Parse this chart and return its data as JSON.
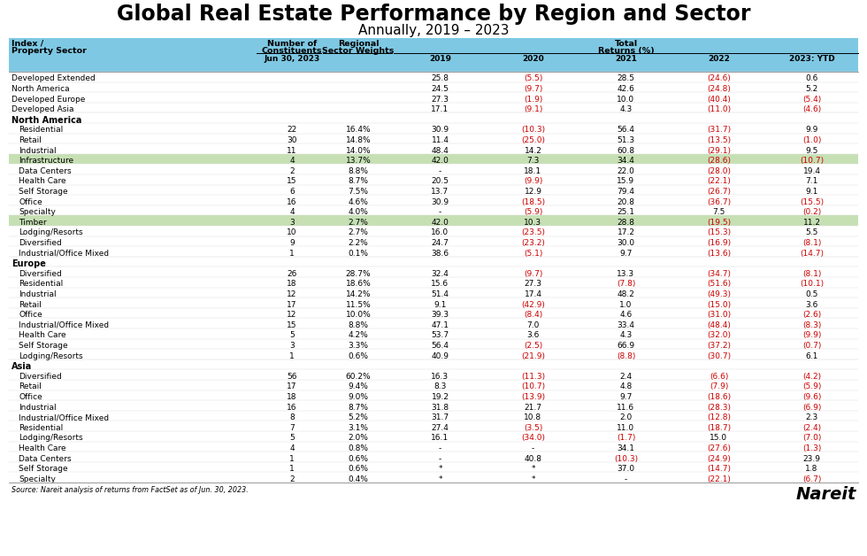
{
  "title": "Global Real Estate Performance by Region and Sector",
  "subtitle": "Annually, 2019 – 2023",
  "source": "Source: Nareit analysis of returns from FactSet as of Jun. 30, 2023.",
  "header_bg": "#7EC8E3",
  "green_highlight": "#c6e0b4",
  "rows": [
    {
      "label": "Developed Extended",
      "indent": 0,
      "num": "",
      "wt": "",
      "y2019": "25.8",
      "y2020": "(5.5)",
      "y2021": "28.5",
      "y2022": "(24.6)",
      "y2023": "0.6",
      "section": false,
      "highlight": false
    },
    {
      "label": "North America",
      "indent": 0,
      "num": "",
      "wt": "",
      "y2019": "24.5",
      "y2020": "(9.7)",
      "y2021": "42.6",
      "y2022": "(24.8)",
      "y2023": "5.2",
      "section": false,
      "highlight": false
    },
    {
      "label": "Developed Europe",
      "indent": 0,
      "num": "",
      "wt": "",
      "y2019": "27.3",
      "y2020": "(1.9)",
      "y2021": "10.0",
      "y2022": "(40.4)",
      "y2023": "(5.4)",
      "section": false,
      "highlight": false
    },
    {
      "label": "Developed Asia",
      "indent": 0,
      "num": "",
      "wt": "",
      "y2019": "17.1",
      "y2020": "(9.1)",
      "y2021": "4.3",
      "y2022": "(11.0)",
      "y2023": "(4.6)",
      "section": false,
      "highlight": false
    },
    {
      "label": "North America",
      "indent": 0,
      "num": "",
      "wt": "",
      "y2019": "",
      "y2020": "",
      "y2021": "",
      "y2022": "",
      "y2023": "",
      "section": true,
      "highlight": false
    },
    {
      "label": "Residential",
      "indent": 1,
      "num": "22",
      "wt": "16.4%",
      "y2019": "30.9",
      "y2020": "(10.3)",
      "y2021": "56.4",
      "y2022": "(31.7)",
      "y2023": "9.9",
      "section": false,
      "highlight": false
    },
    {
      "label": "Retail",
      "indent": 1,
      "num": "30",
      "wt": "14.8%",
      "y2019": "11.4",
      "y2020": "(25.0)",
      "y2021": "51.3",
      "y2022": "(13.5)",
      "y2023": "(1.0)",
      "section": false,
      "highlight": false
    },
    {
      "label": "Industrial",
      "indent": 1,
      "num": "11",
      "wt": "14.0%",
      "y2019": "48.4",
      "y2020": "14.2",
      "y2021": "60.8",
      "y2022": "(29.1)",
      "y2023": "9.5",
      "section": false,
      "highlight": false
    },
    {
      "label": "Infrastructure",
      "indent": 1,
      "num": "4",
      "wt": "13.7%",
      "y2019": "42.0",
      "y2020": "7.3",
      "y2021": "34.4",
      "y2022": "(28.6)",
      "y2023": "(10.7)",
      "section": false,
      "highlight": true
    },
    {
      "label": "Data Centers",
      "indent": 1,
      "num": "2",
      "wt": "8.8%",
      "y2019": "-",
      "y2020": "18.1",
      "y2021": "22.0",
      "y2022": "(28.0)",
      "y2023": "19.4",
      "section": false,
      "highlight": false
    },
    {
      "label": "Health Care",
      "indent": 1,
      "num": "15",
      "wt": "8.7%",
      "y2019": "20.5",
      "y2020": "(9.9)",
      "y2021": "15.9",
      "y2022": "(22.1)",
      "y2023": "7.1",
      "section": false,
      "highlight": false
    },
    {
      "label": "Self Storage",
      "indent": 1,
      "num": "6",
      "wt": "7.5%",
      "y2019": "13.7",
      "y2020": "12.9",
      "y2021": "79.4",
      "y2022": "(26.7)",
      "y2023": "9.1",
      "section": false,
      "highlight": false
    },
    {
      "label": "Office",
      "indent": 1,
      "num": "16",
      "wt": "4.6%",
      "y2019": "30.9",
      "y2020": "(18.5)",
      "y2021": "20.8",
      "y2022": "(36.7)",
      "y2023": "(15.5)",
      "section": false,
      "highlight": false
    },
    {
      "label": "Specialty",
      "indent": 1,
      "num": "4",
      "wt": "4.0%",
      "y2019": "-",
      "y2020": "(5.9)",
      "y2021": "25.1",
      "y2022": "7.5",
      "y2023": "(0.2)",
      "section": false,
      "highlight": false
    },
    {
      "label": "Timber",
      "indent": 1,
      "num": "3",
      "wt": "2.7%",
      "y2019": "42.0",
      "y2020": "10.3",
      "y2021": "28.8",
      "y2022": "(19.5)",
      "y2023": "11.2",
      "section": false,
      "highlight": true
    },
    {
      "label": "Lodging/Resorts",
      "indent": 1,
      "num": "10",
      "wt": "2.7%",
      "y2019": "16.0",
      "y2020": "(23.5)",
      "y2021": "17.2",
      "y2022": "(15.3)",
      "y2023": "5.5",
      "section": false,
      "highlight": false
    },
    {
      "label": "Diversified",
      "indent": 1,
      "num": "9",
      "wt": "2.2%",
      "y2019": "24.7",
      "y2020": "(23.2)",
      "y2021": "30.0",
      "y2022": "(16.9)",
      "y2023": "(8.1)",
      "section": false,
      "highlight": false
    },
    {
      "label": "Industrial/Office Mixed",
      "indent": 1,
      "num": "1",
      "wt": "0.1%",
      "y2019": "38.6",
      "y2020": "(5.1)",
      "y2021": "9.7",
      "y2022": "(13.6)",
      "y2023": "(14.7)",
      "section": false,
      "highlight": false
    },
    {
      "label": "Europe",
      "indent": 0,
      "num": "",
      "wt": "",
      "y2019": "",
      "y2020": "",
      "y2021": "",
      "y2022": "",
      "y2023": "",
      "section": true,
      "highlight": false
    },
    {
      "label": "Diversified",
      "indent": 1,
      "num": "26",
      "wt": "28.7%",
      "y2019": "32.4",
      "y2020": "(9.7)",
      "y2021": "13.3",
      "y2022": "(34.7)",
      "y2023": "(8.1)",
      "section": false,
      "highlight": false
    },
    {
      "label": "Residential",
      "indent": 1,
      "num": "18",
      "wt": "18.6%",
      "y2019": "15.6",
      "y2020": "27.3",
      "y2021": "(7.8)",
      "y2022": "(51.6)",
      "y2023": "(10.1)",
      "section": false,
      "highlight": false
    },
    {
      "label": "Industrial",
      "indent": 1,
      "num": "12",
      "wt": "14.2%",
      "y2019": "51.4",
      "y2020": "17.4",
      "y2021": "48.2",
      "y2022": "(49.3)",
      "y2023": "0.5",
      "section": false,
      "highlight": false
    },
    {
      "label": "Retail",
      "indent": 1,
      "num": "17",
      "wt": "11.5%",
      "y2019": "9.1",
      "y2020": "(42.9)",
      "y2021": "1.0",
      "y2022": "(15.0)",
      "y2023": "3.6",
      "section": false,
      "highlight": false
    },
    {
      "label": "Office",
      "indent": 1,
      "num": "12",
      "wt": "10.0%",
      "y2019": "39.3",
      "y2020": "(8.4)",
      "y2021": "4.6",
      "y2022": "(31.0)",
      "y2023": "(2.6)",
      "section": false,
      "highlight": false
    },
    {
      "label": "Industrial/Office Mixed",
      "indent": 1,
      "num": "15",
      "wt": "8.8%",
      "y2019": "47.1",
      "y2020": "7.0",
      "y2021": "33.4",
      "y2022": "(48.4)",
      "y2023": "(8.3)",
      "section": false,
      "highlight": false
    },
    {
      "label": "Health Care",
      "indent": 1,
      "num": "5",
      "wt": "4.2%",
      "y2019": "53.7",
      "y2020": "3.6",
      "y2021": "4.3",
      "y2022": "(32.0)",
      "y2023": "(9.9)",
      "section": false,
      "highlight": false
    },
    {
      "label": "Self Storage",
      "indent": 1,
      "num": "3",
      "wt": "3.3%",
      "y2019": "56.4",
      "y2020": "(2.5)",
      "y2021": "66.9",
      "y2022": "(37.2)",
      "y2023": "(0.7)",
      "section": false,
      "highlight": false
    },
    {
      "label": "Lodging/Resorts",
      "indent": 1,
      "num": "1",
      "wt": "0.6%",
      "y2019": "40.9",
      "y2020": "(21.9)",
      "y2021": "(8.8)",
      "y2022": "(30.7)",
      "y2023": "6.1",
      "section": false,
      "highlight": false
    },
    {
      "label": "Asia",
      "indent": 0,
      "num": "",
      "wt": "",
      "y2019": "",
      "y2020": "",
      "y2021": "",
      "y2022": "",
      "y2023": "",
      "section": true,
      "highlight": false
    },
    {
      "label": "Diversified",
      "indent": 1,
      "num": "56",
      "wt": "60.2%",
      "y2019": "16.3",
      "y2020": "(11.3)",
      "y2021": "2.4",
      "y2022": "(6.6)",
      "y2023": "(4.2)",
      "section": false,
      "highlight": false
    },
    {
      "label": "Retail",
      "indent": 1,
      "num": "17",
      "wt": "9.4%",
      "y2019": "8.3",
      "y2020": "(10.7)",
      "y2021": "4.8",
      "y2022": "(7.9)",
      "y2023": "(5.9)",
      "section": false,
      "highlight": false
    },
    {
      "label": "Office",
      "indent": 1,
      "num": "18",
      "wt": "9.0%",
      "y2019": "19.2",
      "y2020": "(13.9)",
      "y2021": "9.7",
      "y2022": "(18.6)",
      "y2023": "(9.6)",
      "section": false,
      "highlight": false
    },
    {
      "label": "Industrial",
      "indent": 1,
      "num": "16",
      "wt": "8.7%",
      "y2019": "31.8",
      "y2020": "21.7",
      "y2021": "11.6",
      "y2022": "(28.3)",
      "y2023": "(6.9)",
      "section": false,
      "highlight": false
    },
    {
      "label": "Industrial/Office Mixed",
      "indent": 1,
      "num": "8",
      "wt": "5.2%",
      "y2019": "31.7",
      "y2020": "10.8",
      "y2021": "2.0",
      "y2022": "(12.8)",
      "y2023": "2.3",
      "section": false,
      "highlight": false
    },
    {
      "label": "Residential",
      "indent": 1,
      "num": "7",
      "wt": "3.1%",
      "y2019": "27.4",
      "y2020": "(3.5)",
      "y2021": "11.0",
      "y2022": "(18.7)",
      "y2023": "(2.4)",
      "section": false,
      "highlight": false
    },
    {
      "label": "Lodging/Resorts",
      "indent": 1,
      "num": "5",
      "wt": "2.0%",
      "y2019": "16.1",
      "y2020": "(34.0)",
      "y2021": "(1.7)",
      "y2022": "15.0",
      "y2023": "(7.0)",
      "section": false,
      "highlight": false
    },
    {
      "label": "Health Care",
      "indent": 1,
      "num": "4",
      "wt": "0.8%",
      "y2019": "-",
      "y2020": "-",
      "y2021": "34.1",
      "y2022": "(27.6)",
      "y2023": "(1.3)",
      "section": false,
      "highlight": false
    },
    {
      "label": "Data Centers",
      "indent": 1,
      "num": "1",
      "wt": "0.6%",
      "y2019": "-",
      "y2020": "40.8",
      "y2021": "(10.3)",
      "y2022": "(24.9)",
      "y2023": "23.9",
      "section": false,
      "highlight": false
    },
    {
      "label": "Self Storage",
      "indent": 1,
      "num": "1",
      "wt": "0.6%",
      "y2019": "*",
      "y2020": "*",
      "y2021": "37.0",
      "y2022": "(14.7)",
      "y2023": "1.8",
      "section": false,
      "highlight": false
    },
    {
      "label": "Specialty",
      "indent": 1,
      "num": "2",
      "wt": "0.4%",
      "y2019": "*",
      "y2020": "*",
      "y2021": "-",
      "y2022": "(22.1)",
      "y2023": "(6.7)",
      "section": false,
      "highlight": false
    }
  ]
}
